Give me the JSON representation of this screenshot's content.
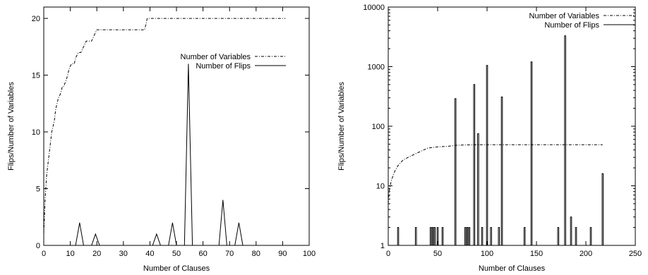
{
  "chart_data": [
    {
      "type": "line",
      "xlabel": "Number of Clauses",
      "ylabel": "Flips/Number of Variables",
      "xlim": [
        0,
        100
      ],
      "ylim": [
        0,
        21
      ],
      "xticks": [
        "0",
        "10",
        "20",
        "30",
        "40",
        "50",
        "60",
        "70",
        "80",
        "90",
        "100"
      ],
      "yticks": [
        "0",
        "5",
        "10",
        "15",
        "20"
      ],
      "log_y": false,
      "legend_position": "center-right",
      "series": [
        {
          "name": "Number of Variables",
          "style": "dash-dot",
          "x": [
            0,
            0.5,
            1,
            1.5,
            2,
            2.5,
            3,
            3.5,
            4,
            4.5,
            5,
            5.5,
            6,
            6.5,
            7,
            7.5,
            8,
            8.5,
            9,
            9.5,
            10,
            10.5,
            11,
            11.5,
            12,
            13,
            14,
            15,
            16,
            17,
            18,
            19,
            20,
            25,
            30,
            35,
            38,
            39,
            45,
            60,
            75,
            91
          ],
          "y": [
            1,
            4,
            6,
            7,
            8,
            9,
            10,
            10.5,
            11,
            12,
            12.5,
            13,
            13.2,
            13.5,
            14,
            14,
            14.3,
            14.6,
            15,
            15.5,
            15.8,
            16,
            16,
            16,
            16.5,
            17,
            17,
            17.5,
            18,
            18,
            18,
            18.5,
            19,
            19,
            19,
            19,
            19,
            20,
            20,
            20,
            20,
            20
          ]
        },
        {
          "name": "Number of Flips",
          "style": "solid",
          "x": [
            0,
            12,
            13.5,
            15,
            18,
            19.5,
            21,
            41,
            42.5,
            44,
            47,
            48.5,
            50,
            53,
            54.5,
            56,
            66,
            67.5,
            69,
            72,
            73.5,
            75
          ],
          "y": [
            0,
            0,
            2,
            0,
            0,
            1,
            0,
            0,
            1,
            0,
            0,
            2,
            0,
            0,
            16,
            0,
            0,
            4,
            0,
            0,
            2,
            0
          ]
        }
      ]
    },
    {
      "type": "line",
      "xlabel": "Number of Clauses",
      "ylabel": "Flips/Number of Variables",
      "xlim": [
        0,
        250
      ],
      "ylim": [
        1,
        10000
      ],
      "xticks": [
        "0",
        "50",
        "100",
        "150",
        "200",
        "250"
      ],
      "yticks": [
        "1",
        "10",
        "100",
        "1000",
        "10000"
      ],
      "log_y": true,
      "legend_position": "top-right",
      "series": [
        {
          "name": "Number of Variables",
          "style": "dash-dot",
          "x": [
            0,
            1,
            2,
            3,
            5,
            7,
            10,
            15,
            20,
            30,
            40,
            50,
            60,
            70,
            90,
            120,
            150,
            180,
            217
          ],
          "y": [
            5,
            8,
            10,
            12,
            15,
            18,
            22,
            27,
            30,
            36,
            43,
            45,
            46,
            48,
            49,
            49,
            49,
            49,
            49
          ]
        },
        {
          "name": "Number of Flips",
          "style": "solid",
          "spikes": [
            [
              10,
              2
            ],
            [
              28,
              2
            ],
            [
              43,
              2
            ],
            [
              45,
              2
            ],
            [
              47,
              2
            ],
            [
              50,
              2
            ],
            [
              55,
              2
            ],
            [
              68,
              290
            ],
            [
              78,
              2
            ],
            [
              80,
              2
            ],
            [
              82,
              2
            ],
            [
              87,
              500
            ],
            [
              91,
              75
            ],
            [
              95,
              2
            ],
            [
              100,
              1050
            ],
            [
              104,
              2
            ],
            [
              112,
              2
            ],
            [
              115,
              310
            ],
            [
              138,
              2
            ],
            [
              145,
              1200
            ],
            [
              172,
              2
            ],
            [
              179,
              3300
            ],
            [
              185,
              3
            ],
            [
              190,
              2
            ],
            [
              205,
              2
            ],
            [
              217,
              16
            ]
          ]
        }
      ]
    }
  ]
}
